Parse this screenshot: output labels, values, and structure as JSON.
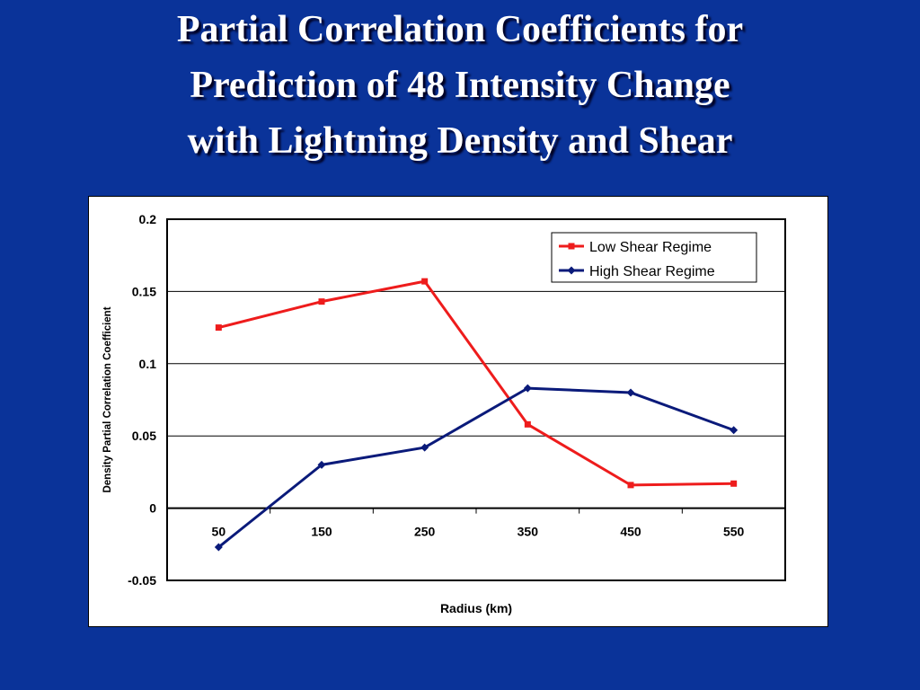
{
  "slide": {
    "title_lines": [
      "Partial Correlation Coefficients for",
      "Prediction of  48 Intensity Change",
      "with Lightning Density and Shear"
    ]
  },
  "colors": {
    "background": "#0a3399",
    "low_shear": "#ee1c1c",
    "high_shear": "#0a1a7a"
  },
  "chart_data": {
    "type": "line",
    "x": [
      50,
      150,
      250,
      350,
      450,
      550
    ],
    "categories": [
      "50",
      "150",
      "250",
      "350",
      "450",
      "550"
    ],
    "series": [
      {
        "name": "Low Shear Regime",
        "marker": "square",
        "color": "#ee1c1c",
        "values": [
          0.125,
          0.143,
          0.157,
          0.058,
          0.016,
          0.017
        ]
      },
      {
        "name": "High Shear Regime",
        "marker": "diamond",
        "color": "#0a1a7a",
        "values": [
          -0.027,
          0.03,
          0.042,
          0.083,
          0.08,
          0.054
        ]
      }
    ],
    "xlabel": "Radius (km)",
    "ylabel": "Density Partial Correlation Coefficient",
    "ylim": [
      -0.05,
      0.2
    ],
    "yticks": [
      "0.2",
      "0.15",
      "0.1",
      "0.05",
      "0",
      "-0.05"
    ],
    "grid": true,
    "legend": "top-right"
  }
}
